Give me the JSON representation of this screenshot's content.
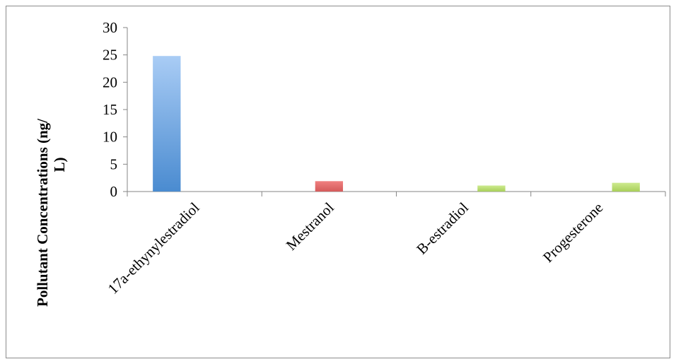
{
  "chart_data": {
    "type": "bar",
    "title": "",
    "xlabel": "",
    "ylabel_lines": [
      "Pollutant Concentrations (ng/",
      "L)"
    ],
    "categories": [
      "17a-ethynylestradiol",
      "Mestranol",
      "B-estradiol",
      "Progesterone"
    ],
    "series": [
      {
        "values": [
          24.8,
          null,
          null,
          null
        ],
        "color_top": "#a9ccf5",
        "color_bottom": "#4a8bd0"
      },
      {
        "values": [
          null,
          1.9,
          null,
          null
        ],
        "color_top": "#f08080",
        "color_bottom": "#d45a5a"
      },
      {
        "values": [
          null,
          null,
          1.1,
          1.6
        ],
        "color_top": "#cdea8f",
        "color_bottom": "#a8cf5a"
      }
    ],
    "ylim": [
      0,
      30
    ],
    "yticks": [
      "0",
      "5",
      "10",
      "15",
      "20",
      "25",
      "30"
    ],
    "grid": false,
    "legend": "none"
  }
}
